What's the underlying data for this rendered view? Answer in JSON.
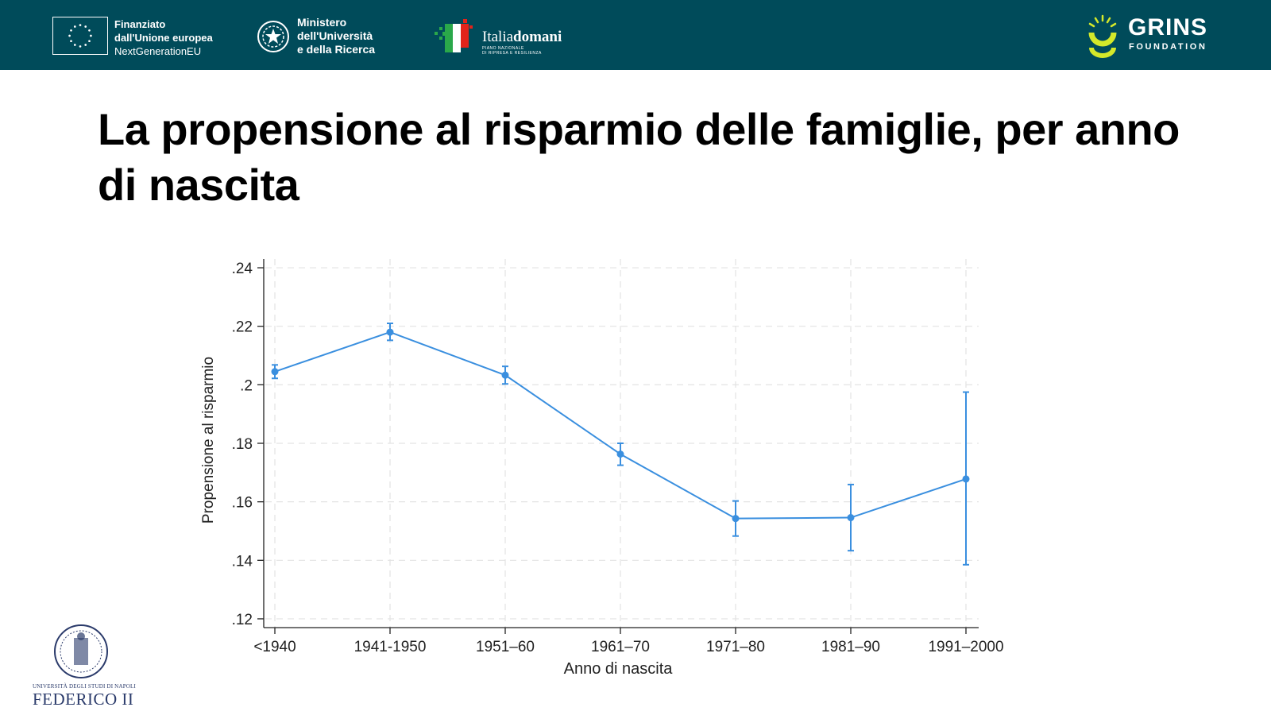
{
  "header": {
    "eu_line1": "Finanziato",
    "eu_line2": "dall'Unione europea",
    "eu_line3": "NextGenerationEU",
    "mur_line1": "Ministero",
    "mur_line2": "dell'Università",
    "mur_line3": "e della Ricerca",
    "italia_main_a": "Italia",
    "italia_main_b": "domani",
    "italia_sub1": "PIANO NAZIONALE",
    "italia_sub2": "DI RIPRESA E RESILIENZA",
    "grins_name": "GRINS",
    "grins_sub": "FOUNDATION",
    "bg_color": "#004b5a",
    "grins_accent": "#d4e82a"
  },
  "title": "La propensione al risparmio delle famiglie, per anno di nascita",
  "footer": {
    "university_sub": "UNIVERSITÀ DEGLI STUDI DI NAPOLI",
    "university_main": "FEDERICO II"
  },
  "chart_data": {
    "type": "line",
    "xlabel": "Anno di nascita",
    "ylabel": "Propensione al risparmio",
    "categories": [
      "<1940",
      "1941-1950",
      "1951–60",
      "1961–70",
      "1971–80",
      "1981–90",
      "1991–2000"
    ],
    "values": [
      0.2045,
      0.218,
      0.2033,
      0.1763,
      0.1543,
      0.1546,
      0.1678
    ],
    "ci_low": [
      0.2022,
      0.2152,
      0.2003,
      0.1725,
      0.1483,
      0.1433,
      0.1385
    ],
    "ci_high": [
      0.2068,
      0.221,
      0.2063,
      0.18,
      0.1603,
      0.1659,
      0.1975
    ],
    "yticks": [
      0.12,
      0.14,
      0.16,
      0.18,
      0.2,
      0.22,
      0.24
    ],
    "ytick_labels": [
      ".12",
      ".14",
      ".16",
      ".18",
      ".2",
      ".22",
      ".24"
    ],
    "ylim": [
      0.117,
      0.243
    ],
    "grid": true,
    "series_color": "#3a8fdf"
  }
}
